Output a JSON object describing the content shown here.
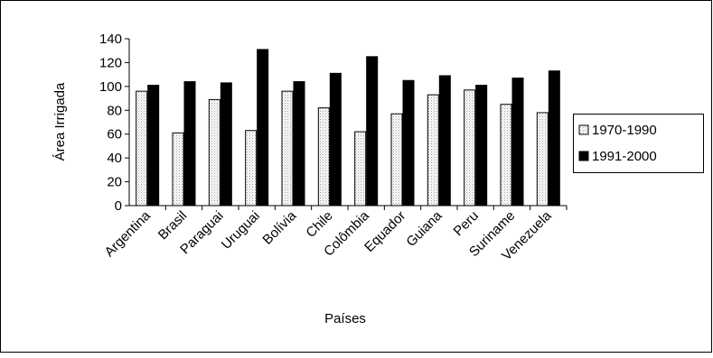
{
  "chart_data": {
    "type": "bar",
    "title": "",
    "xlabel": "Países",
    "ylabel": "Área Irrigada",
    "ylim": [
      0,
      140
    ],
    "yticks": [
      0,
      20,
      40,
      60,
      80,
      100,
      120,
      140
    ],
    "grid": false,
    "legend_position": "right",
    "categories": [
      "Argentina",
      "Brasil",
      "Paraguai",
      "Uruguai",
      "Bolívia",
      "Chile",
      "Colômbia",
      "Equador",
      "Guiana",
      "Peru",
      "Suriname",
      "Venezuela"
    ],
    "series": [
      {
        "name": "1970-1990",
        "color": "#dcdcdc",
        "values": [
          96,
          61,
          89,
          63,
          96,
          82,
          62,
          77,
          93,
          97,
          85,
          78
        ]
      },
      {
        "name": "1991-2000",
        "color": "#000000",
        "values": [
          101,
          104,
          103,
          131,
          104,
          111,
          125,
          105,
          109,
          101,
          107,
          113
        ]
      }
    ]
  }
}
